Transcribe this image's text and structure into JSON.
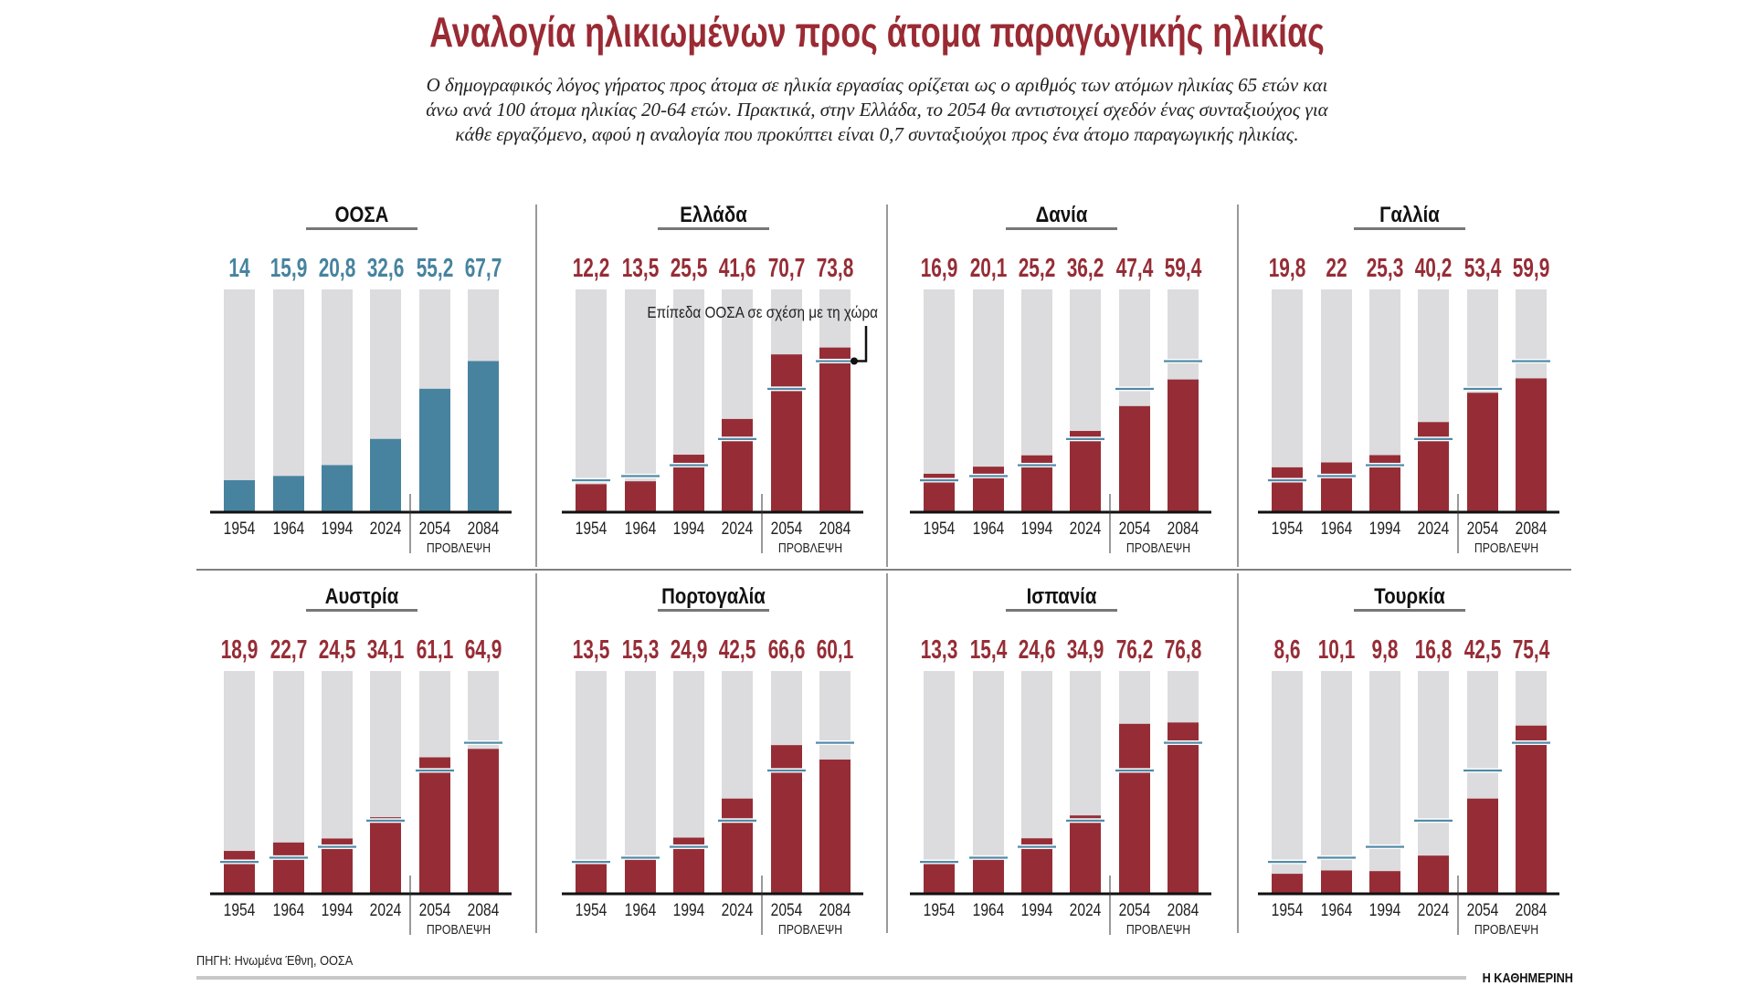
{
  "title": "Αναλογία ηλικιωμένων προς άτομα παραγωγικής ηλικίας",
  "subtitle": "Ο δημογραφικός λόγος γήρατος προς άτομα σε ηλικία εργασίας ορίζεται ως ο αριθμός των ατόμων ηλικίας 65 ετών και άνω ανά 100 άτομα ηλικίας 20-64 ετών. Πρακτικά, στην Ελλάδα, το 2054 θα αντιστοιχεί σχεδόν ένας συνταξιούχος για κάθε εργαζόμενο, αφού η αναλογία που προκύπτει είναι 0,7 συνταξιούχοι προς ένα άτομο παραγωγικής ηλικίας.",
  "annotation": "Επίπεδα ΟΟΣΑ σε σχέση με τη χώρα",
  "projection_label": "ΠΡΟΒΛΕΨΗ",
  "source": "ΠΗΓΗ: Ηνωμένα Έθνη, ΟΟΣΑ",
  "brand": "Η ΚΑΘΗΜΕΡΙΝΗ",
  "colors": {
    "country": "#962d36",
    "oecd": "#47839f",
    "background_bar": "#dcdcde",
    "reference_line": "#4f8aa7",
    "title": "#9a2a33"
  },
  "chart_data": {
    "type": "bar",
    "categories": [
      "1954",
      "1964",
      "1994",
      "2024",
      "2054",
      "2084"
    ],
    "projected_categories": [
      "2054",
      "2084"
    ],
    "ylim": [
      0,
      100
    ],
    "reference_series": "ΟΟΣΑ",
    "panels": [
      {
        "name": "ΟΟΣΑ",
        "values": [
          14,
          15.9,
          20.8,
          32.6,
          55.2,
          67.7
        ],
        "labels": [
          "14",
          "15,9",
          "20,8",
          "32,6",
          "55,2",
          "67,7"
        ]
      },
      {
        "name": "Ελλάδα",
        "values": [
          12.2,
          13.5,
          25.5,
          41.6,
          70.7,
          73.8
        ],
        "labels": [
          "12,2",
          "13,5",
          "25,5",
          "41,6",
          "70,7",
          "73,8"
        ]
      },
      {
        "name": "Δανία",
        "values": [
          16.9,
          20.1,
          25.2,
          36.2,
          47.4,
          59.4
        ],
        "labels": [
          "16,9",
          "20,1",
          "25,2",
          "36,2",
          "47,4",
          "59,4"
        ]
      },
      {
        "name": "Γαλλία",
        "values": [
          19.8,
          22,
          25.3,
          40.2,
          53.4,
          59.9
        ],
        "labels": [
          "19,8",
          "22",
          "25,3",
          "40,2",
          "53,4",
          "59,9"
        ]
      },
      {
        "name": "Αυστρία",
        "values": [
          18.9,
          22.7,
          24.5,
          34.1,
          61.1,
          64.9
        ],
        "labels": [
          "18,9",
          "22,7",
          "24,5",
          "34,1",
          "61,1",
          "64,9"
        ]
      },
      {
        "name": "Πορτογαλία",
        "values": [
          13.5,
          15.3,
          24.9,
          42.5,
          66.6,
          60.1
        ],
        "labels": [
          "13,5",
          "15,3",
          "24,9",
          "42,5",
          "66,6",
          "60,1"
        ]
      },
      {
        "name": "Ισπανία",
        "values": [
          13.3,
          15.4,
          24.6,
          34.9,
          76.2,
          76.8
        ],
        "labels": [
          "13,3",
          "15,4",
          "24,6",
          "34,9",
          "76,2",
          "76,8"
        ]
      },
      {
        "name": "Τουρκία",
        "values": [
          8.6,
          10.1,
          9.8,
          16.8,
          42.5,
          75.4
        ],
        "labels": [
          "8,6",
          "10,1",
          "9,8",
          "16,8",
          "42,5",
          "75,4"
        ]
      }
    ]
  }
}
